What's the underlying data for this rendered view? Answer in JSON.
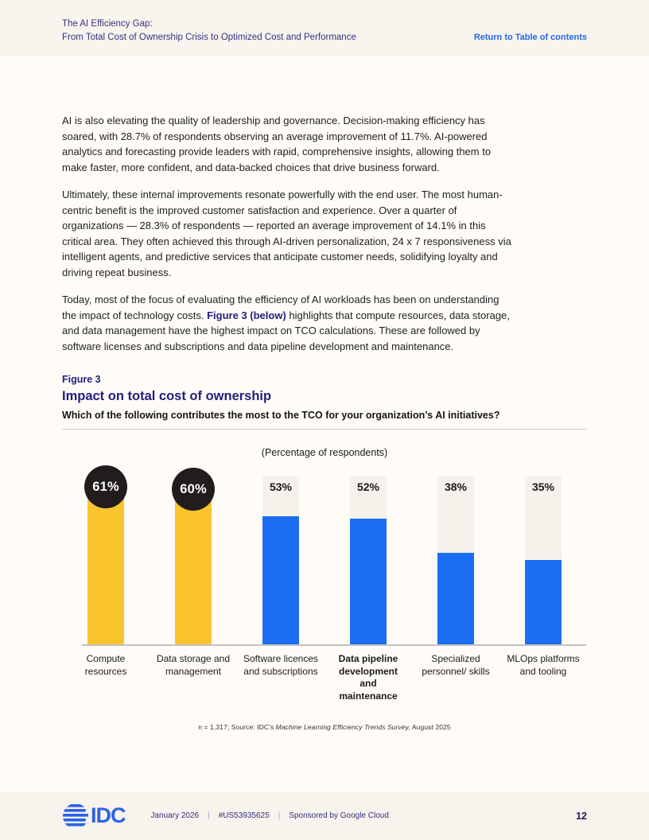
{
  "header": {
    "title_line1": "The AI Efficiency Gap:",
    "title_line2": "From Total Cost of Ownership Crisis to Optimized Cost and Performance",
    "return_link": "Return to Table of contents"
  },
  "body": {
    "p1": "AI is also elevating the quality of leadership and governance. Decision-making efficiency has soared, with 28.7% of respondents observing an average improvement of 11.7%. AI-powered analytics and forecasting provide leaders with rapid, comprehensive insights, allowing them to make faster, more confident, and data-backed choices that drive business forward.",
    "p2": "Ultimately, these internal improvements resonate powerfully with the end user. The most human-centric benefit is the improved customer satisfaction and experience. Over a quarter of organizations — 28.3% of respondents — reported an average improvement of 14.1% in this critical area. They often achieved this through AI-driven personalization, 24 x 7 responsiveness via intelligent agents, and predictive services that anticipate customer needs, solidifying loyalty and driving repeat business.",
    "p3_before": "Today, most of the focus of evaluating the efficiency of AI workloads has been on understanding the impact of technology costs. ",
    "p3_link": "Figure 3 (below)",
    "p3_after": " highlights that compute resources, data storage, and data management have the highest impact on TCO calculations. These are followed by software licenses and subscriptions and data pipeline development and maintenance."
  },
  "figure": {
    "label": "Figure 3",
    "title": "Impact on total cost of ownership",
    "subtitle": "Which of the following contributes the most to the TCO for your organization’s AI initiatives?",
    "axis_note": "(Percentage of respondents)"
  },
  "chart_data": {
    "type": "bar",
    "title": "Impact on total cost of ownership",
    "subtitle": "Which of the following contributes the most to the TCO for your organization’s AI initiatives?",
    "unit": "Percentage of respondents",
    "categories": [
      "Compute resources",
      "Data storage and management",
      "Software licences and subscriptions",
      "Data pipeline development and maintenance",
      "Specialized personnel/ skills",
      "MLOps platforms and tooling"
    ],
    "values": [
      61,
      60,
      53,
      52,
      38,
      35
    ],
    "display_values": [
      "61%",
      "60%",
      "53%",
      "52%",
      "38%",
      "35%"
    ],
    "highlighted": [
      true,
      true,
      false,
      false,
      false,
      false
    ],
    "bar_colors": {
      "highlight": "#fac42f",
      "normal": "#1b6ef3"
    },
    "badge_color": "#211d1d",
    "track_color": "#f5f1eb",
    "ylim": [
      0,
      70
    ],
    "legend": "none",
    "grid": false
  },
  "footnote": {
    "prefix": "n = 1,317; Source: IDC's ",
    "italic": "Machine Learning Efficiency Trends Survey,",
    "suffix": " August 2025"
  },
  "footer": {
    "logo_text": "IDC",
    "date": "January 2026",
    "doc_id": "#US53935625",
    "sponsor": "Sponsored by Google Cloud",
    "page_number": "12"
  }
}
